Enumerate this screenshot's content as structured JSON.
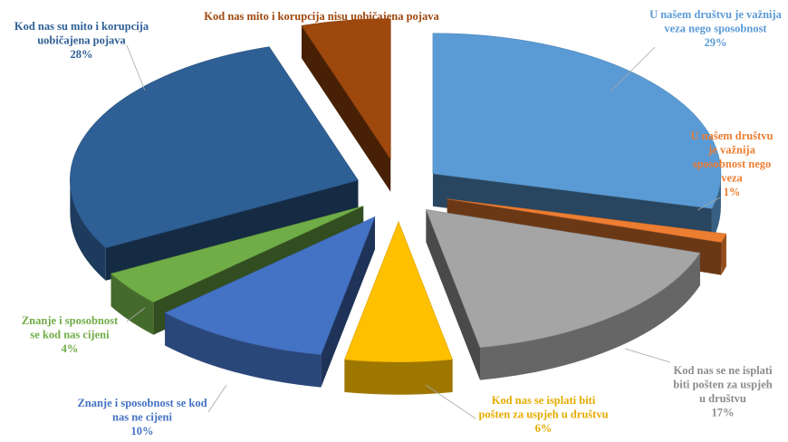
{
  "chart_data": {
    "type": "pie",
    "style": "3d-exploded",
    "title": "",
    "slices": [
      {
        "label": "U našem društvu je važnija veza nego sposobnost",
        "value": 29,
        "display": "29%",
        "color": "#5B9BD5"
      },
      {
        "label": "U našem društvu je važnija sposobnost nego veza",
        "value": 1,
        "display": "1%",
        "color": "#ED7D31"
      },
      {
        "label": "Kod nas se ne isplati biti pošten za uspjeh u društvu",
        "value": 17,
        "display": "17%",
        "color": "#A5A5A5"
      },
      {
        "label": "Kod nas se isplati biti pošten za uspjeh u društvu",
        "value": 6,
        "display": "6%",
        "color": "#FFC000"
      },
      {
        "label": "Znanje i sposobnost se kod nas ne cijeni",
        "value": 10,
        "display": "10%",
        "color": "#4472C4"
      },
      {
        "label": "Znanje i sposobnost se kod nas cijeni",
        "value": 4,
        "display": "4%",
        "color": "#70AD47"
      },
      {
        "label": "Kod nas su mito i korupcija uobičajena pojava",
        "value": 28,
        "display": "28%",
        "color": "#2E5F95"
      },
      {
        "label": "Kod nas mito i korupcija nisu uobičajena pojava",
        "value": 5,
        "display": "5%",
        "color": "#9E480E"
      }
    ]
  }
}
